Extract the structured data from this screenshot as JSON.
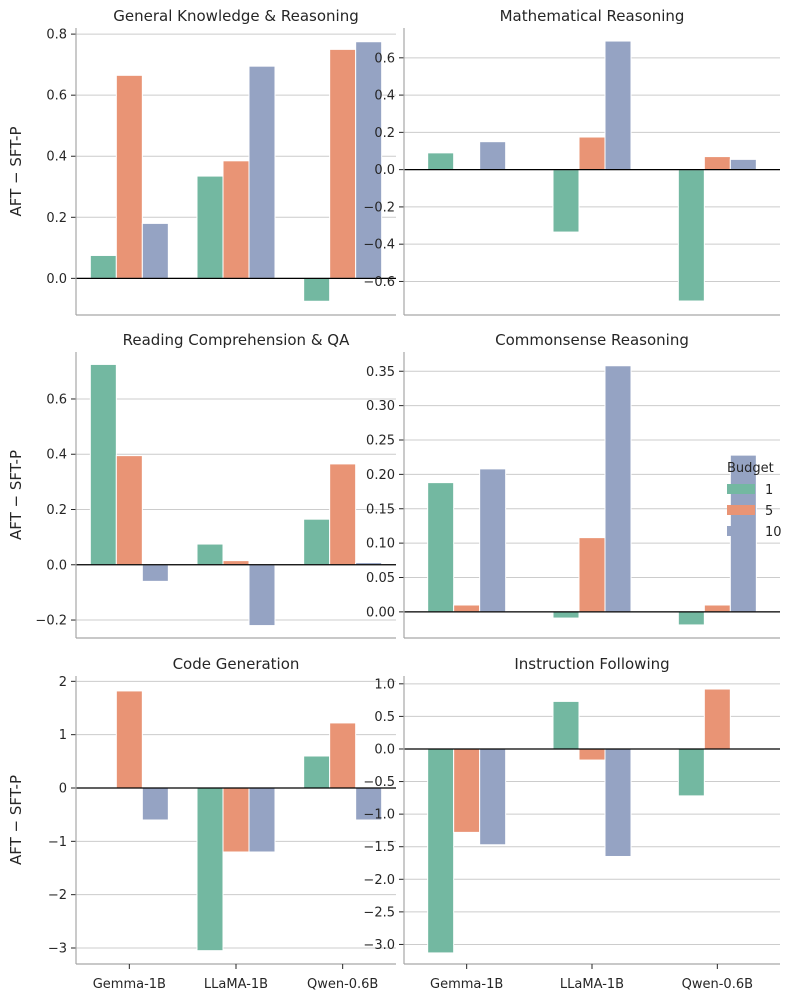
{
  "chart_data": {
    "type": "bar",
    "layout": "grid-3x2",
    "categories": [
      "Gemma-1B",
      "LLaMA-1B",
      "Qwen-0.6B"
    ],
    "ylabel": "AFT − SFT-P",
    "legend": {
      "title": "Budget",
      "placement": "right",
      "entries": [
        {
          "label": "1",
          "color": "#73b8a1"
        },
        {
          "label": "5",
          "color": "#e99475"
        },
        {
          "label": "10",
          "color": "#95a3c3"
        }
      ]
    },
    "panels": [
      {
        "title": "General Knowledge & Reasoning",
        "ylim": [
          -0.12,
          0.82
        ],
        "ticks": [
          0.0,
          0.2,
          0.4,
          0.6,
          0.8
        ],
        "tick_labels": [
          "0.0",
          "0.2",
          "0.4",
          "0.6",
          "0.8"
        ],
        "series": [
          {
            "name": "1",
            "values": [
              0.075,
              0.335,
              -0.075
            ]
          },
          {
            "name": "5",
            "values": [
              0.665,
              0.385,
              0.75
            ]
          },
          {
            "name": "10",
            "values": [
              0.18,
              0.695,
              0.775
            ]
          }
        ]
      },
      {
        "title": "Mathematical Reasoning",
        "ylim": [
          -0.78,
          0.76
        ],
        "ticks": [
          -0.6,
          -0.4,
          -0.2,
          0.0,
          0.2,
          0.4,
          0.6
        ],
        "tick_labels": [
          "−0.6",
          "−0.4",
          "−0.2",
          "0.0",
          "0.2",
          "0.4",
          "0.6"
        ],
        "series": [
          {
            "name": "1",
            "values": [
              0.09,
              -0.335,
              -0.705
            ]
          },
          {
            "name": "5",
            "values": [
              0.0,
              0.175,
              0.07
            ]
          },
          {
            "name": "10",
            "values": [
              0.15,
              0.69,
              0.055
            ]
          }
        ]
      },
      {
        "title": "Reading Comprehension & QA",
        "ylim": [
          -0.265,
          0.77
        ],
        "ticks": [
          -0.2,
          0.0,
          0.2,
          0.4,
          0.6
        ],
        "tick_labels": [
          "−0.2",
          "0.0",
          "0.2",
          "0.4",
          "0.6"
        ],
        "series": [
          {
            "name": "1",
            "values": [
              0.725,
              0.075,
              0.165
            ]
          },
          {
            "name": "5",
            "values": [
              0.395,
              0.015,
              0.365
            ]
          },
          {
            "name": "10",
            "values": [
              -0.06,
              -0.22,
              0.008
            ]
          }
        ]
      },
      {
        "title": "Commonsense Reasoning",
        "ylim": [
          -0.038,
          0.378
        ],
        "ticks": [
          0.0,
          0.05,
          0.1,
          0.15,
          0.2,
          0.25,
          0.3,
          0.35
        ],
        "tick_labels": [
          "0.00",
          "0.05",
          "0.10",
          "0.15",
          "0.20",
          "0.25",
          "0.30",
          "0.35"
        ],
        "series": [
          {
            "name": "1",
            "values": [
              0.188,
              -0.009,
              -0.019
            ]
          },
          {
            "name": "5",
            "values": [
              0.01,
              0.108,
              0.01
            ]
          },
          {
            "name": "10",
            "values": [
              0.208,
              0.358,
              0.228
            ]
          }
        ]
      },
      {
        "title": "Code Generation",
        "ylim": [
          -3.3,
          2.1
        ],
        "ticks": [
          -3,
          -2,
          -1,
          0,
          1,
          2
        ],
        "tick_labels": [
          "−3",
          "−2",
          "−1",
          "0",
          "1",
          "2"
        ],
        "series": [
          {
            "name": "1",
            "values": [
              0.0,
              -3.05,
              0.6
            ]
          },
          {
            "name": "5",
            "values": [
              1.82,
              -1.2,
              1.22
            ]
          },
          {
            "name": "10",
            "values": [
              -0.6,
              -1.2,
              -0.6
            ]
          }
        ]
      },
      {
        "title": "Instruction Following",
        "ylim": [
          -3.3,
          1.12
        ],
        "ticks": [
          -3.0,
          -2.5,
          -2.0,
          -1.5,
          -1.0,
          -0.5,
          0.0,
          0.5,
          1.0
        ],
        "tick_labels": [
          "−3.0",
          "−2.5",
          "−2.0",
          "−1.5",
          "−1.0",
          "−0.5",
          "0.0",
          "0.5",
          "1.0"
        ],
        "series": [
          {
            "name": "1",
            "values": [
              -3.13,
              0.73,
              -0.72
            ]
          },
          {
            "name": "5",
            "values": [
              -1.28,
              -0.17,
              0.92
            ]
          },
          {
            "name": "10",
            "values": [
              -1.47,
              -1.65,
              0.0
            ]
          }
        ]
      }
    ]
  }
}
